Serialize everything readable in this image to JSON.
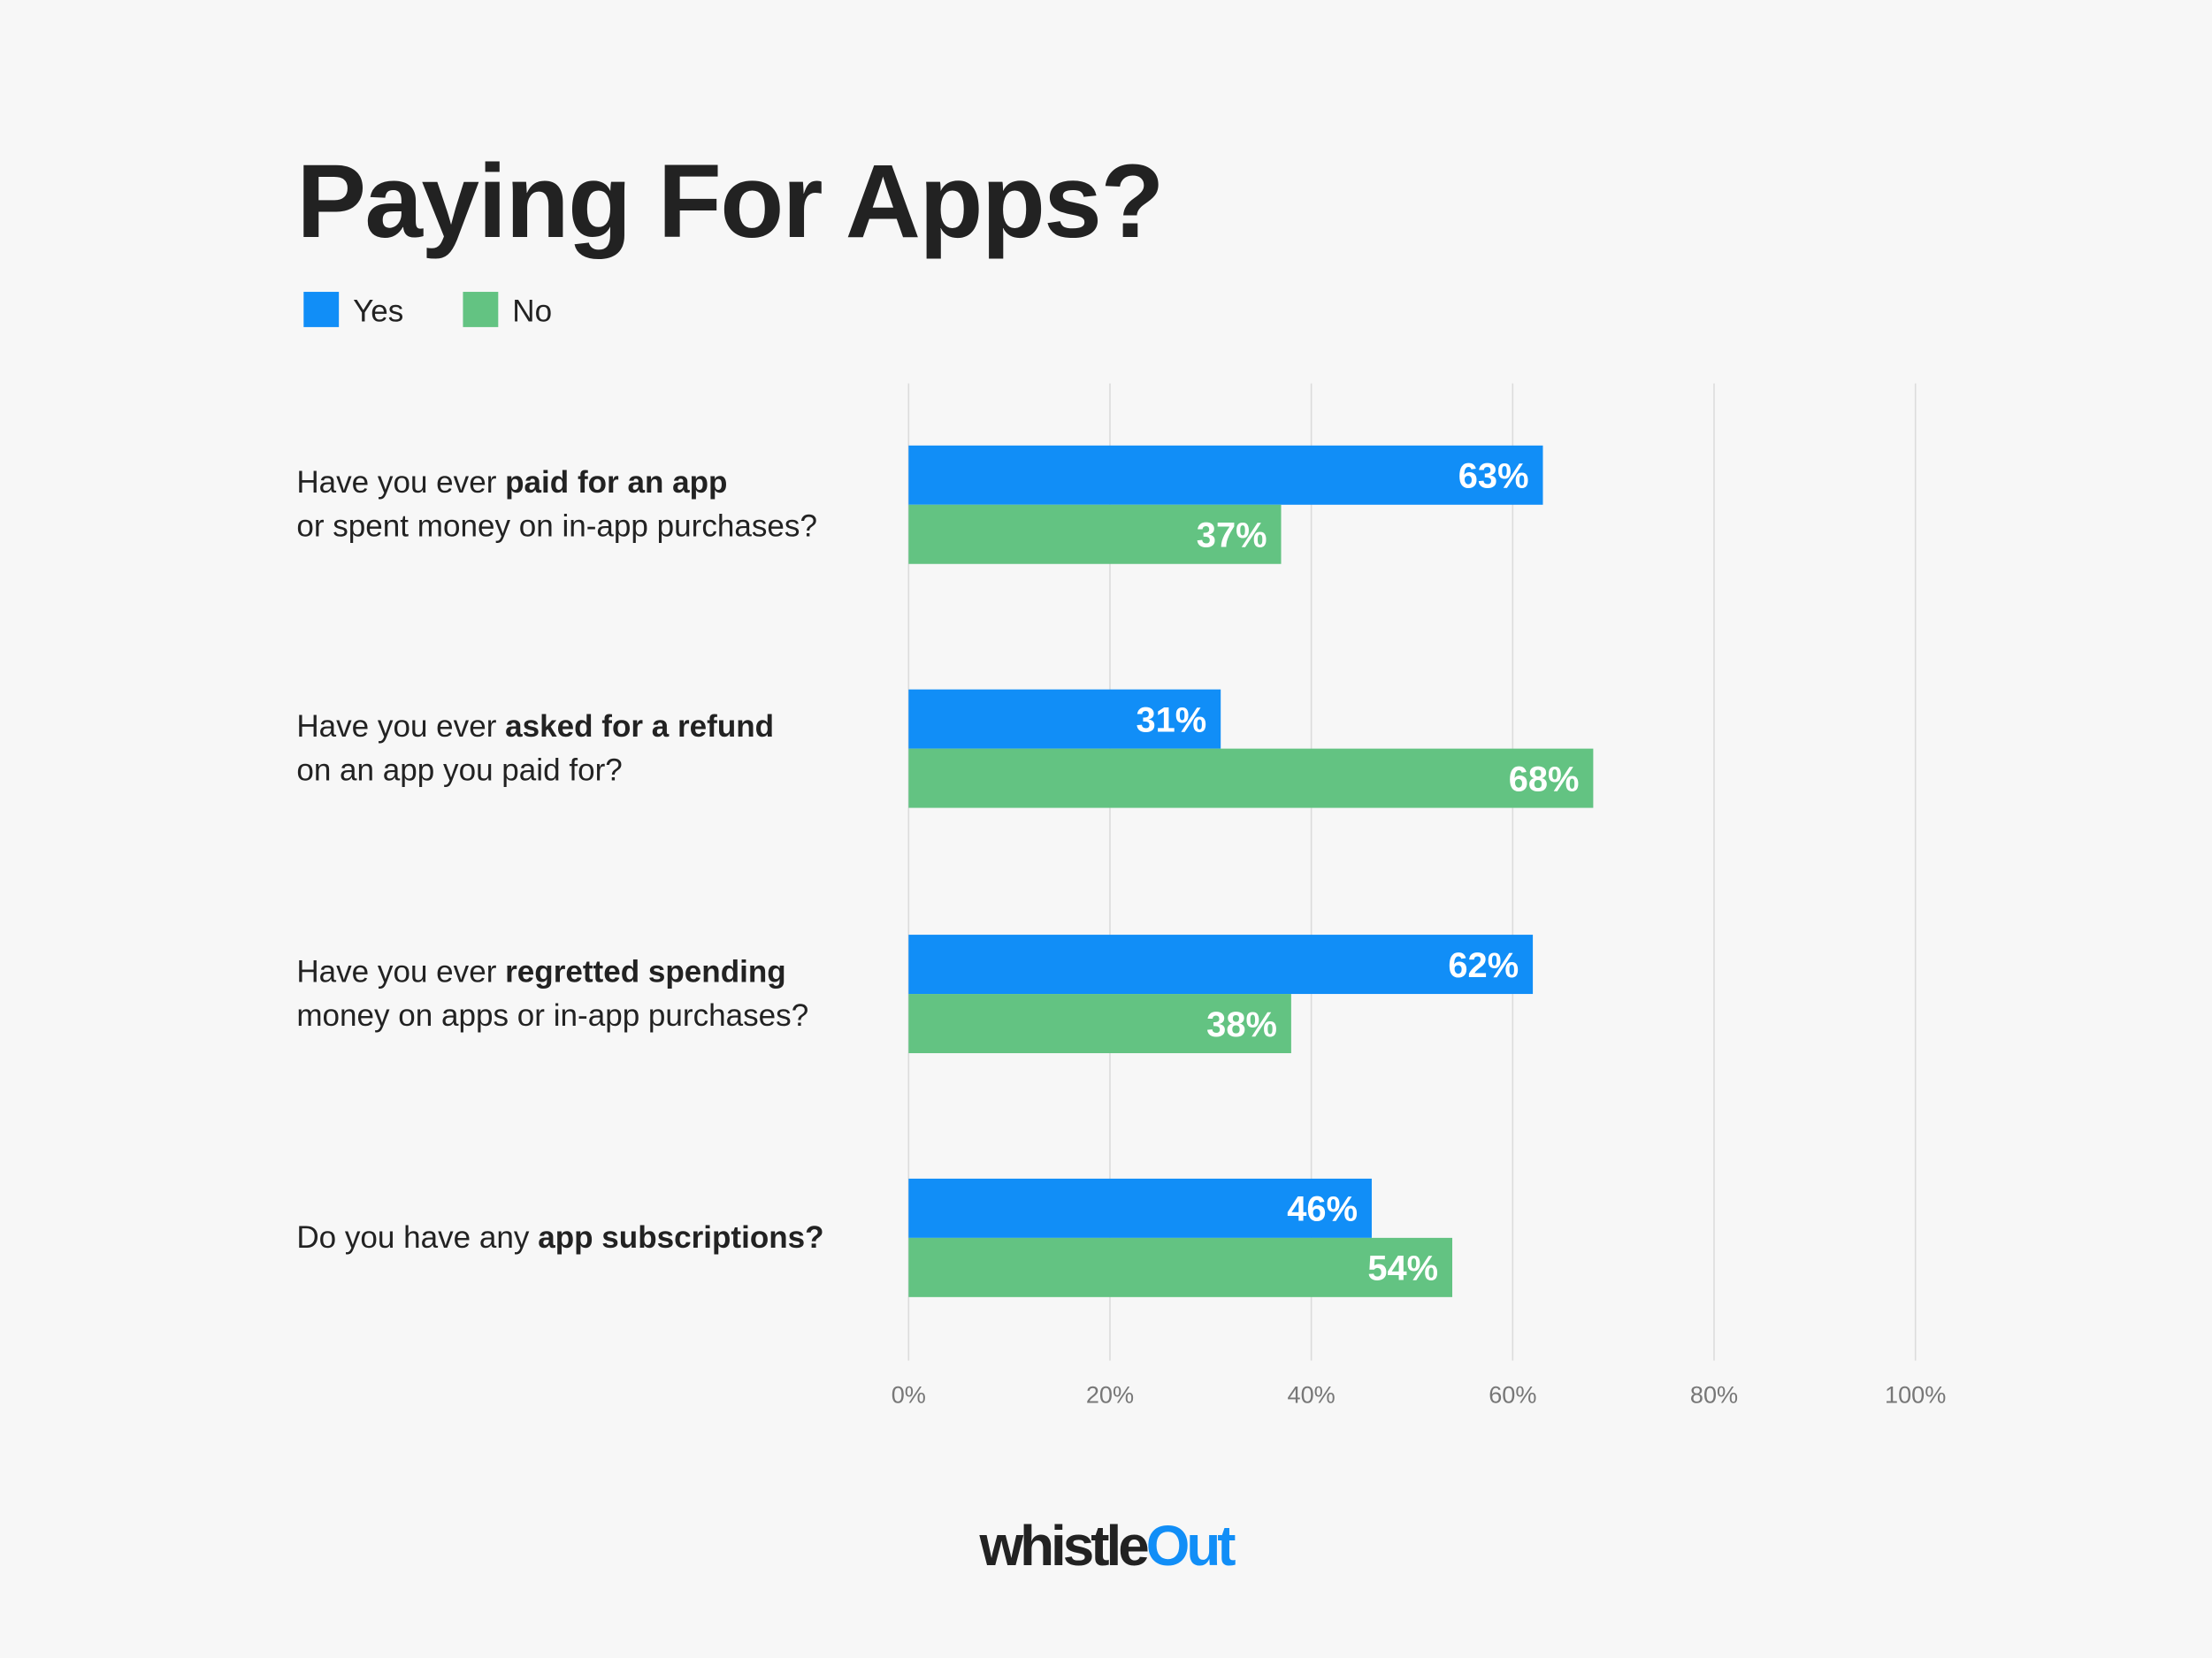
{
  "chart_data": {
    "type": "bar",
    "orientation": "horizontal",
    "title": "Paying For Apps?",
    "categories": [
      [
        [
          "Have you ever ",
          "paid for an app"
        ],
        [
          "or spent money on in-app purchases?"
        ]
      ],
      [
        [
          "Have you ever ",
          "asked for a refund"
        ],
        [
          "on an app you paid for?"
        ]
      ],
      [
        [
          "Have you ever ",
          "regretted spending"
        ],
        [
          "money on apps or in-app purchases?"
        ]
      ],
      [
        [
          "Do you have any ",
          "app subscriptions?"
        ]
      ]
    ],
    "series": [
      {
        "name": "Yes",
        "color": "#118ef7",
        "values": [
          63,
          31,
          62,
          46
        ],
        "value_labels": [
          "63%",
          "31%",
          "62%",
          "46%"
        ]
      },
      {
        "name": "No",
        "color": "#63c382",
        "values": [
          37,
          68,
          38,
          54
        ],
        "value_labels": [
          "37%",
          "68%",
          "38%",
          "54%"
        ]
      }
    ],
    "xlim": [
      0,
      100
    ],
    "xticks": [
      {
        "value": 0,
        "label": "0%"
      },
      {
        "value": 20,
        "label": "20%"
      },
      {
        "value": 40,
        "label": "40%"
      },
      {
        "value": 60,
        "label": "60%"
      },
      {
        "value": 80,
        "label": "80%"
      },
      {
        "value": 100,
        "label": "100%"
      }
    ],
    "grid": true,
    "legend": "top-left"
  },
  "footer": {
    "logo": [
      "whistle",
      "Out"
    ]
  }
}
